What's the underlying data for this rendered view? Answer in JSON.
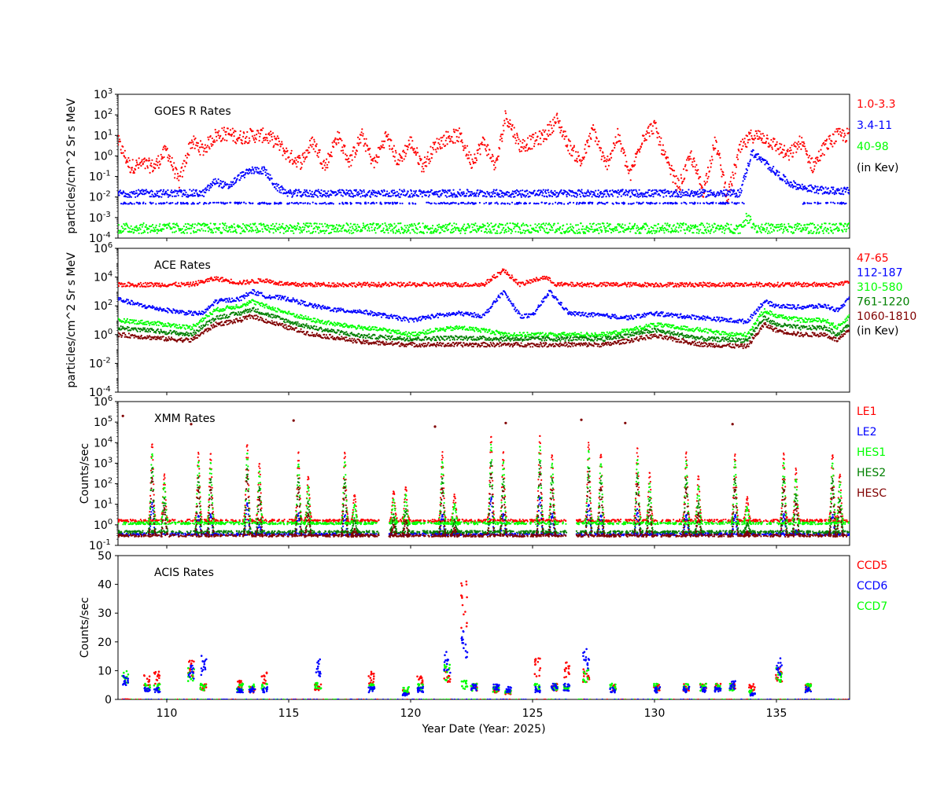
{
  "figure": {
    "xlabel": "Year Date (Year: 2025)",
    "x_ticks": [
      110,
      115,
      120,
      125,
      130,
      135
    ],
    "xlim": [
      108,
      138
    ]
  },
  "colors": {
    "red": "#ff0000",
    "blue": "#0000ff",
    "green": "#00ff00",
    "dark_green": "#008000",
    "dark_red": "#800000"
  },
  "chart_data": [
    {
      "id": "goes",
      "type": "scatter",
      "title": "GOES R Rates",
      "ylabel": "particles/cm^2 Sr s MeV",
      "yscale": "log",
      "ylim_exp": [
        -4,
        3
      ],
      "y_ticks": [
        "10^3",
        "10^2",
        "10^1",
        "10^0",
        "10^-1",
        "10^-2",
        "10^-3",
        "10^-4"
      ],
      "legend": [
        "1.0-3.3",
        "3.4-11",
        "40-98",
        "(in Kev)"
      ],
      "legend_colors": [
        "#ff0000",
        "#0000ff",
        "#00ff00",
        "#000000"
      ],
      "series": [
        {
          "name": "1.0-3.3",
          "color": "#ff0000",
          "x": [
            108,
            108.5,
            109,
            109.5,
            110,
            110.5,
            111,
            111.5,
            112,
            112.5,
            113,
            113.5,
            114,
            114.5,
            115,
            115.5,
            116,
            116.5,
            117,
            117.5,
            118,
            118.5,
            119,
            119.5,
            120,
            120.5,
            121,
            121.5,
            122,
            122.5,
            123,
            123.5,
            123.9,
            124.5,
            125,
            125.5,
            126,
            126.5,
            127,
            127.5,
            128,
            128.5,
            129,
            129.5,
            130,
            130.5,
            131,
            131.5,
            132,
            132.5,
            133,
            133.5,
            134,
            134.5,
            135,
            135.5,
            136,
            136.5,
            137,
            137.5,
            138
          ],
          "y": [
            5,
            0.3,
            0.4,
            0.3,
            2,
            0.05,
            5,
            2,
            10,
            12,
            8,
            10,
            10,
            5,
            1,
            0.5,
            5,
            0.3,
            10,
            0.5,
            10,
            0.4,
            10,
            0.5,
            5,
            0.3,
            3,
            8,
            10,
            0.5,
            5,
            0.3,
            100,
            3,
            5,
            10,
            60,
            3,
            0.5,
            20,
            0.3,
            10,
            0.1,
            8,
            30,
            0.5,
            0.03,
            1,
            0.02,
            5,
            0.01,
            2,
            10,
            8,
            3,
            1,
            5,
            0.3,
            3,
            10,
            10
          ]
        },
        {
          "name": "3.4-11",
          "color": "#0000ff",
          "x": [
            108,
            111.5,
            112,
            112.5,
            113,
            113.5,
            114,
            114.5,
            115,
            120,
            125,
            130,
            133.5,
            134,
            134.5,
            135,
            135.5,
            136,
            137,
            138
          ],
          "y": [
            0.015,
            0.015,
            0.06,
            0.03,
            0.1,
            0.2,
            0.2,
            0.03,
            0.015,
            0.015,
            0.015,
            0.015,
            0.015,
            1.5,
            0.5,
            0.15,
            0.05,
            0.03,
            0.02,
            0.02
          ]
        },
        {
          "name": "40-98",
          "color": "#00ff00",
          "x": [
            108,
            115,
            120,
            125,
            130,
            133.5,
            133.8,
            134.2,
            135,
            138
          ],
          "y": [
            0.0003,
            0.0003,
            0.0003,
            0.0003,
            0.0003,
            0.0003,
            0.001,
            0.0003,
            0.0003,
            0.0003
          ]
        }
      ]
    },
    {
      "id": "ace",
      "type": "scatter",
      "title": "ACE Rates",
      "ylabel": "particles/cm^2 Sr s MeV",
      "yscale": "log",
      "ylim_exp": [
        -4,
        6
      ],
      "y_ticks": [
        "10^6",
        "10^4",
        "10^2",
        "10^0",
        "10^-2",
        "10^-4"
      ],
      "legend": [
        "47-65",
        "112-187",
        "310-580",
        "761-1220",
        "1060-1810",
        "(in Kev)"
      ],
      "legend_colors": [
        "#ff0000",
        "#0000ff",
        "#00ff00",
        "#008000",
        "#800000",
        "#000000"
      ],
      "series": [
        {
          "name": "47-65",
          "color": "#ff0000",
          "x": [
            108,
            111,
            112,
            113,
            114,
            114.5,
            115,
            120,
            123,
            123.8,
            124.5,
            125.5,
            126,
            126.5,
            130,
            134,
            135,
            137.5,
            138
          ],
          "y": [
            3000,
            3000,
            8000,
            4000,
            6000,
            4000,
            3000,
            3000,
            3000,
            30000,
            3000,
            10000,
            3000,
            3000,
            3000,
            3000,
            3000,
            3000,
            5000
          ]
        },
        {
          "name": "112-187",
          "color": "#0000ff",
          "x": [
            108,
            109,
            110,
            111,
            111.5,
            112,
            113,
            113.5,
            114,
            115,
            116,
            117,
            118,
            119,
            120,
            121,
            122,
            123,
            123.8,
            124.5,
            125,
            125.7,
            126.5,
            128,
            129,
            130,
            131,
            132,
            133,
            133.8,
            134.5,
            135,
            136,
            137,
            137.5,
            138
          ],
          "y": [
            300,
            100,
            50,
            30,
            30,
            200,
            300,
            1000,
            500,
            300,
            100,
            50,
            40,
            20,
            10,
            20,
            30,
            20,
            1000,
            20,
            20,
            1000,
            30,
            20,
            15,
            30,
            20,
            15,
            10,
            8,
            200,
            100,
            80,
            100,
            50,
            300
          ]
        },
        {
          "name": "310-580",
          "color": "#00ff00",
          "x": [
            108,
            110,
            111,
            112,
            113,
            113.5,
            114,
            115,
            116,
            117,
            118,
            119,
            120,
            121,
            122,
            123,
            124,
            125,
            126,
            127,
            128,
            129,
            130,
            131,
            132,
            133,
            133.8,
            134.5,
            135,
            136,
            137,
            137.5,
            138
          ],
          "y": [
            10,
            5,
            3,
            50,
            100,
            200,
            100,
            30,
            10,
            5,
            3,
            2,
            1,
            2,
            3,
            2,
            1,
            1,
            1,
            1,
            1,
            2,
            5,
            3,
            2,
            1,
            1,
            50,
            20,
            10,
            10,
            3,
            20
          ]
        },
        {
          "name": "761-1220",
          "color": "#008000",
          "x": [
            108,
            110,
            111,
            112,
            113,
            113.5,
            114,
            115,
            116,
            117,
            118,
            120,
            122,
            124,
            126,
            128,
            129,
            130,
            132,
            133.8,
            134.5,
            135,
            136,
            137,
            137.5,
            138
          ],
          "y": [
            3,
            1.5,
            1,
            15,
            30,
            60,
            30,
            8,
            3,
            1.5,
            0.8,
            0.5,
            0.6,
            0.5,
            0.5,
            0.5,
            1,
            2,
            0.5,
            0.4,
            15,
            5,
            3,
            3,
            1,
            5
          ]
        },
        {
          "name": "1060-1810",
          "color": "#800000",
          "x": [
            108,
            110,
            111,
            112,
            113,
            113.5,
            114,
            115,
            116,
            117,
            118,
            120,
            122,
            124,
            126,
            128,
            129,
            130,
            132,
            133.8,
            134.5,
            135,
            136,
            137,
            137.5,
            138
          ],
          "y": [
            1,
            0.5,
            0.4,
            5,
            10,
            20,
            10,
            3,
            1,
            0.6,
            0.3,
            0.2,
            0.2,
            0.2,
            0.2,
            0.2,
            0.4,
            0.8,
            0.2,
            0.15,
            5,
            2,
            1,
            1,
            0.4,
            2
          ]
        }
      ]
    },
    {
      "id": "xmm",
      "type": "scatter",
      "title": "XMM Rates",
      "ylabel": "Counts/sec",
      "yscale": "log",
      "ylim_exp": [
        -1,
        6
      ],
      "y_ticks": [
        "10^6",
        "10^5",
        "10^4",
        "10^3",
        "10^2",
        "10^1",
        "10^0",
        "10^-1"
      ],
      "legend": [
        "LE1",
        "LE2",
        "HES1",
        "HES2",
        "HESC"
      ],
      "legend_colors": [
        "#ff0000",
        "#0000ff",
        "#00ff00",
        "#008000",
        "#800000"
      ],
      "gaps": [
        [
          118.7,
          119.1
        ],
        [
          126.4,
          126.8
        ]
      ],
      "spikes": [
        109.4,
        109.9,
        111.3,
        111.8,
        113.3,
        113.8,
        115.4,
        115.8,
        117.3,
        117.7,
        119.3,
        119.8,
        121.3,
        121.8,
        123.3,
        123.8,
        125.3,
        125.8,
        127.3,
        127.8,
        129.3,
        129.8,
        131.3,
        131.8,
        133.3,
        133.8,
        135.3,
        135.8,
        137.3,
        137.6
      ],
      "spike_peaks": [
        10000,
        300,
        3000,
        3000,
        10000,
        1000,
        3000,
        200,
        3000,
        30,
        50,
        80,
        3000,
        30,
        20000,
        3000,
        20000,
        3000,
        10000,
        3000,
        5000,
        300,
        3000,
        200,
        3000,
        20,
        3000,
        500,
        3000,
        300
      ],
      "series": [
        {
          "name": "LE1",
          "color": "#ff0000",
          "baseline": 1.6
        },
        {
          "name": "LE2",
          "color": "#0000ff",
          "baseline": 0.35
        },
        {
          "name": "HES1",
          "color": "#00ff00",
          "baseline": 1.2
        },
        {
          "name": "HES2",
          "color": "#008000",
          "baseline": 0.45
        },
        {
          "name": "HESC",
          "color": "#800000",
          "baseline": 0.3
        }
      ],
      "outliers": {
        "x": [
          108.2,
          111,
          115.2,
          121,
          123.9,
          127,
          128.8,
          133.2
        ],
        "y": [
          200000,
          80000,
          120000,
          60000,
          90000,
          130000,
          90000,
          80000
        ]
      }
    },
    {
      "id": "acis",
      "type": "scatter",
      "title": "ACIS Rates",
      "ylabel": "Counts/sec",
      "yscale": "linear",
      "ylim": [
        0,
        50
      ],
      "y_ticks": [
        0,
        10,
        20,
        30,
        40,
        50
      ],
      "legend": [
        "CCD5",
        "CCD6",
        "CCD7"
      ],
      "legend_colors": [
        "#ff0000",
        "#0000ff",
        "#00ff00"
      ],
      "clusters": [
        {
          "x": 108.3,
          "ccd5": 0,
          "ccd6": 8,
          "ccd7": 9
        },
        {
          "x": 109.2,
          "ccd5": 8,
          "ccd6": 4,
          "ccd7": 5
        },
        {
          "x": 109.6,
          "ccd5": 9,
          "ccd6": 4,
          "ccd7": 5
        },
        {
          "x": 111.0,
          "ccd5": 13,
          "ccd6": 11,
          "ccd7": 10
        },
        {
          "x": 111.5,
          "ccd5": 5,
          "ccd6": 14,
          "ccd7": 5
        },
        {
          "x": 113.0,
          "ccd5": 6,
          "ccd6": 4,
          "ccd7": 5
        },
        {
          "x": 113.5,
          "ccd5": 4,
          "ccd6": 4,
          "ccd7": 5
        },
        {
          "x": 114.0,
          "ccd5": 9,
          "ccd6": 4,
          "ccd7": 5
        },
        {
          "x": 116.2,
          "ccd5": 5,
          "ccd6": 13,
          "ccd7": 6
        },
        {
          "x": 118.4,
          "ccd5": 9,
          "ccd6": 4,
          "ccd7": 5
        },
        {
          "x": 119.8,
          "ccd5": 3,
          "ccd6": 2,
          "ccd7": 4
        },
        {
          "x": 120.4,
          "ccd5": 8,
          "ccd6": 4,
          "ccd7": 5
        },
        {
          "x": 121.5,
          "ccd5": 10,
          "ccd6": 15,
          "ccd7": 11
        },
        {
          "x": 122.2,
          "ccd5": 40,
          "ccd6": 22,
          "ccd7": 6
        },
        {
          "x": 122.6,
          "ccd5": 5,
          "ccd6": 5,
          "ccd7": 5
        },
        {
          "x": 123.5,
          "ccd5": 4,
          "ccd6": 5,
          "ccd7": 4
        },
        {
          "x": 124.0,
          "ccd5": 3,
          "ccd6": 4,
          "ccd7": 3
        },
        {
          "x": 125.2,
          "ccd5": 13,
          "ccd6": 4,
          "ccd7": 5
        },
        {
          "x": 125.9,
          "ccd5": 5,
          "ccd6": 5,
          "ccd7": 5
        },
        {
          "x": 126.4,
          "ccd5": 12,
          "ccd6": 5,
          "ccd7": 5
        },
        {
          "x": 127.2,
          "ccd5": 10,
          "ccd6": 16,
          "ccd7": 10
        },
        {
          "x": 128.3,
          "ccd5": 5,
          "ccd6": 4,
          "ccd7": 5
        },
        {
          "x": 130.1,
          "ccd5": 5,
          "ccd6": 4,
          "ccd7": 5
        },
        {
          "x": 131.3,
          "ccd5": 5,
          "ccd6": 4,
          "ccd7": 5
        },
        {
          "x": 132.0,
          "ccd5": 5,
          "ccd6": 4,
          "ccd7": 5
        },
        {
          "x": 132.6,
          "ccd5": 5,
          "ccd6": 4,
          "ccd7": 5
        },
        {
          "x": 133.2,
          "ccd5": 5,
          "ccd6": 6,
          "ccd7": 5
        },
        {
          "x": 134.0,
          "ccd5": 5,
          "ccd6": 2,
          "ccd7": 3
        },
        {
          "x": 135.1,
          "ccd5": 10,
          "ccd6": 13,
          "ccd7": 10
        },
        {
          "x": 136.3,
          "ccd5": 5,
          "ccd6": 4,
          "ccd7": 5
        }
      ]
    }
  ]
}
